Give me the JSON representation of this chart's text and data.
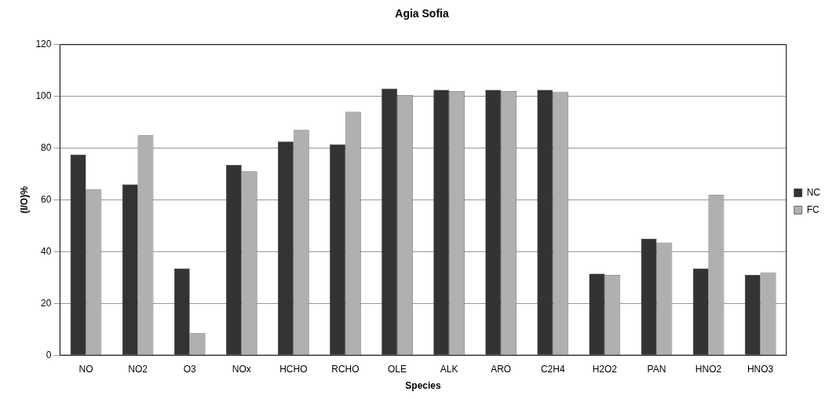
{
  "chart_data": {
    "type": "bar",
    "title": "Agia Sofia",
    "xlabel": "Species",
    "ylabel": "(I/O)%",
    "categories": [
      "NO",
      "NO2",
      "O3",
      "NOx",
      "HCHO",
      "RCHO",
      "OLE",
      "ALK",
      "ARO",
      "C2H4",
      "H2O2",
      "PAN",
      "HNO2",
      "HNO3"
    ],
    "series": [
      {
        "name": "NC",
        "color": "#333333",
        "values": [
          77.5,
          66,
          33.5,
          73.5,
          82.5,
          81.5,
          103,
          102.5,
          102.5,
          102.5,
          31.5,
          45,
          33.5,
          31
        ]
      },
      {
        "name": "FC",
        "color": "#b0b0b0",
        "values": [
          64,
          85,
          8.5,
          71,
          87,
          94,
          100.5,
          102,
          102,
          101.8,
          31,
          43.5,
          62,
          32
        ]
      }
    ],
    "ylim": [
      0,
      120
    ],
    "yticks": [
      0,
      20,
      40,
      60,
      80,
      100,
      120
    ],
    "grid": "y",
    "legend": "right"
  }
}
